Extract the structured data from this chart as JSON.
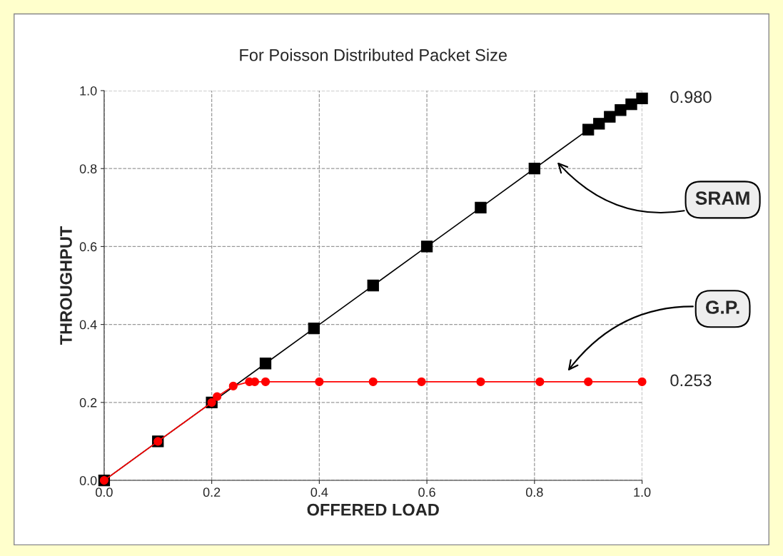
{
  "chart_data": {
    "type": "line",
    "title": "For Poisson Distributed Packet Size",
    "xlabel": "OFFERED LOAD",
    "ylabel": "THROUGHPUT",
    "x": [
      0,
      0.1,
      0.2,
      0.3,
      0.39,
      0.5,
      0.6,
      0.7,
      0.8,
      0.9,
      0.92,
      0.94,
      0.96,
      0.98,
      1.0
    ],
    "series": [
      {
        "color": "#000000",
        "marker": "square",
        "values": [
          0,
          0.1,
          0.2,
          0.3,
          0.39,
          0.5,
          0.6,
          0.7,
          0.8,
          0.9,
          0.915,
          0.933,
          0.95,
          0.965,
          0.98
        ]
      },
      {
        "color": "#ff0000",
        "marker": "circle",
        "x": [
          0,
          0.1,
          0.2,
          0.21,
          0.24,
          0.27,
          0.28,
          0.3,
          0.4,
          0.5,
          0.59,
          0.7,
          0.81,
          0.9,
          1.0
        ],
        "values": [
          0,
          0.1,
          0.2,
          0.215,
          0.242,
          0.253,
          0.253,
          0.253,
          0.253,
          0.253,
          0.253,
          0.253,
          0.253,
          0.253,
          0.253
        ]
      }
    ],
    "xlim": [
      0,
      1.0
    ],
    "ylim": [
      0,
      1.0
    ],
    "xticks": [
      {
        "value": 0,
        "label": "0.0"
      },
      0.2,
      0.4,
      0.6,
      0.8,
      {
        "value": 1.0,
        "label": "1.0"
      }
    ],
    "yticks": [
      {
        "value": 0,
        "label": "0.0"
      },
      0.2,
      0.4,
      0.6,
      0.8,
      {
        "value": 1.0,
        "label": "1.0"
      }
    ],
    "grid": true,
    "legend": false,
    "line_style": "solid",
    "annotations": [
      {
        "text": "0.980",
        "x": 1.0,
        "y": 0.98
      },
      {
        "text": "0.253",
        "x": 1.0,
        "y": 0.253
      },
      "SRAM",
      "G.P."
    ]
  }
}
